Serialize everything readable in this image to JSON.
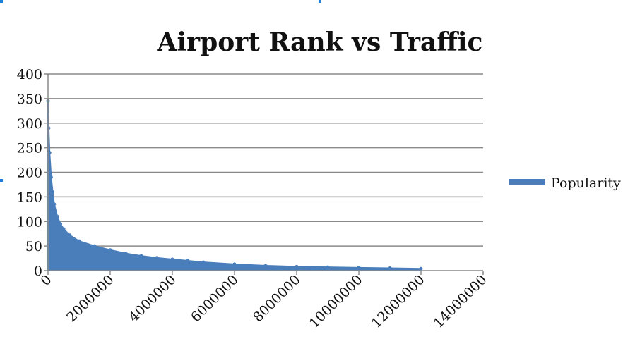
{
  "chart_data": {
    "type": "area",
    "title": "Airport Rank vs Traffic",
    "xlabel": "",
    "ylabel": "",
    "xlim": [
      0,
      14000000
    ],
    "ylim": [
      0,
      400
    ],
    "x_ticks": [
      "0",
      "2000000",
      "4000000",
      "6000000",
      "8000000",
      "10000000",
      "12000000",
      "14000000"
    ],
    "y_ticks": [
      "0",
      "50",
      "100",
      "150",
      "200",
      "250",
      "300",
      "350",
      "400"
    ],
    "grid": true,
    "legend_position": "right",
    "series": [
      {
        "name": "Popularity",
        "color": "#4a7ebb",
        "x": [
          0,
          20000,
          50000,
          100000,
          150000,
          200000,
          300000,
          400000,
          500000,
          700000,
          1000000,
          1500000,
          2000000,
          2500000,
          3000000,
          3500000,
          4000000,
          4500000,
          5000000,
          6000000,
          7000000,
          8000000,
          9000000,
          10000000,
          11000000,
          12000000
        ],
        "values": [
          345,
          290,
          240,
          190,
          160,
          135,
          110,
          95,
          85,
          72,
          60,
          50,
          42,
          35,
          30,
          26,
          23,
          20,
          17,
          13,
          10,
          8,
          7,
          6,
          5,
          4
        ]
      }
    ]
  }
}
